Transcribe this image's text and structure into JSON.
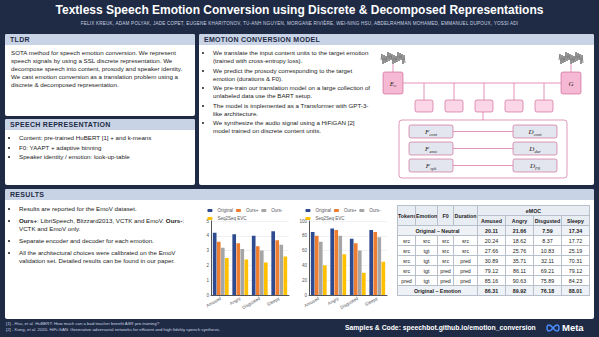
{
  "header": {
    "title": "Textless Speech Emotion Conversion using Discrete & Decomposed Representations",
    "authors": "FELIX KREUK, ADAM POLYAK, JADE COPET, EUGENE KHARITONOV, TU-ANH NGUYEN, MORGANE RIVIÈRE, WEI-NING HSU, ABDELRAHMAN MOHAMED, EMMANUEL DUPOUX, YOSSI ADI"
  },
  "tldr": {
    "heading": "TLDR",
    "text": "SOTA method for speech emotion conversion. We represent speech signals by using a SSL discrete representation. We decompose speech into content, prosody and speaker identity. We cast emotion conversion as a translation problem using a discrete & decomposed representation."
  },
  "speech_representation": {
    "heading": "SPEECH REPRESENTATION",
    "items": [
      "Content: pre-trained HuBERT [1] + and k-means",
      "F0: YAAPT + adaptive binning",
      "Speaker identity / emotion: look-up-table"
    ]
  },
  "model": {
    "heading": "EMOTION CONVERSION MODEL",
    "items": [
      "We translate the input content units to the target emotion (trained with cross-entropy loss).",
      "We predict the prosody corresponding to the target emotion (durations & F0).",
      "We pre-train our translation model on a large collection of unlabeled data use the BART setup.",
      "The model is implemented as a Transformer with GPT-3-like architecture.",
      "We synthesize the audio signal using a HiFiGAN [2] model trained on discrete content units."
    ],
    "diagram": {
      "top": [
        {
          "label": "E",
          "sub": "c"
        },
        {
          "label": "G",
          "sub": ""
        }
      ],
      "left": [
        {
          "label": "F",
          "sub": "cont"
        },
        {
          "label": "F",
          "sub": "emo"
        },
        {
          "label": "F",
          "sub": "spk"
        }
      ],
      "right": [
        {
          "label": "D",
          "sub": "cont"
        },
        {
          "label": "D",
          "sub": "dur"
        },
        {
          "label": "D",
          "sub": "F0"
        }
      ]
    }
  },
  "results": {
    "heading": "RESULTS",
    "items": [
      [
        {
          "text": "Results are reported for the EmoV dataset.",
          "bold": false
        }
      ],
      [
        {
          "text": "Ours+",
          "bold": true
        },
        {
          "text": ": LibriSpeech, Blizzard2013, VCTK and EmoV. ",
          "bold": false
        },
        {
          "text": "Ours-",
          "bold": true
        },
        {
          "text": ": VCTK and EmoV only.",
          "bold": false
        }
      ],
      [
        {
          "text": "Separate encoder and decoder for each emotion.",
          "bold": false
        }
      ],
      [
        {
          "text": "All the architectural choices were calibrated on the EmoV validation set. Detailed results can be found in our paper.",
          "bold": false
        }
      ]
    ],
    "table": {
      "columns": [
        "Tokens",
        "Emotion",
        "F0",
        "Duration"
      ],
      "group": "eMOC",
      "subcolumns": [
        "Amused",
        "Angry",
        "Disgusted",
        "Sleepy"
      ],
      "rows": [
        {
          "label": "Original – Neutral",
          "values": [
            20.11,
            21.66,
            7.59,
            17.34
          ]
        },
        {
          "cells": [
            "src",
            "src",
            "src",
            "src"
          ],
          "values": [
            20.24,
            18.62,
            8.37,
            17.72
          ]
        },
        {
          "cells": [
            "src",
            "tgt",
            "src",
            "src"
          ],
          "values": [
            27.66,
            25.76,
            10.83,
            25.19
          ]
        },
        {
          "cells": [
            "src",
            "tgt",
            "src",
            "pred"
          ],
          "values": [
            30.89,
            35.71,
            32.11,
            70.31
          ]
        },
        {
          "cells": [
            "src",
            "tgt",
            "pred",
            "pred"
          ],
          "values": [
            79.12,
            86.11,
            69.21,
            79.12
          ]
        },
        {
          "cells": [
            "pred",
            "tgt",
            "pred",
            "pred"
          ],
          "values": [
            85.16,
            90.63,
            75.89,
            84.23
          ]
        },
        {
          "label": "Original – Emotion",
          "values": [
            86.31,
            89.92,
            76.18,
            88.01
          ]
        }
      ]
    }
  },
  "chart_data": [
    {
      "type": "bar",
      "categories": [
        "Amused",
        "Angry",
        "Disgusted",
        "Sleepy"
      ],
      "series": [
        {
          "name": "Original",
          "color": "#2f4b8f",
          "values": [
            4.2,
            4.1,
            4.0,
            4.3
          ]
        },
        {
          "name": "Ours+",
          "color": "#ed7d31",
          "values": [
            3.6,
            3.5,
            3.3,
            3.7
          ]
        },
        {
          "name": "Ours-",
          "color": "#a5a5a5",
          "values": [
            3.2,
            3.1,
            3.0,
            3.4
          ]
        },
        {
          "name": "Seq2Seq EVC",
          "color": "#ffc000",
          "values": [
            2.5,
            2.4,
            2.2,
            2.6
          ]
        }
      ],
      "ylim": [
        0,
        5
      ],
      "yticks": [
        0,
        1,
        2,
        3,
        4,
        5
      ],
      "grid": true,
      "legend": "top"
    },
    {
      "type": "bar",
      "categories": [
        "Amused",
        "Angry",
        "Disgusted",
        "Sleepy"
      ],
      "series": [
        {
          "name": "Original",
          "color": "#2f4b8f",
          "values": [
            85,
            90,
            76,
            88
          ]
        },
        {
          "name": "Ours+",
          "color": "#ed7d31",
          "values": [
            80,
            88,
            70,
            85
          ]
        },
        {
          "name": "Ours-",
          "color": "#a5a5a5",
          "values": [
            72,
            80,
            60,
            78
          ]
        },
        {
          "name": "Seq2Seq EVC",
          "color": "#ffc000",
          "values": [
            40,
            55,
            30,
            45
          ]
        }
      ],
      "ylim": [
        0,
        100
      ],
      "yticks": [
        0,
        20,
        40,
        60,
        80,
        100
      ],
      "grid": true,
      "legend": "top"
    }
  ],
  "footer": {
    "references": [
      "[1] - Hsu, et al. HuBERT: How much can a bad teacher benefit ASR pre-training?",
      "[2] - Kong, et al. 2020. HiFi-GAN: Generative adversarial networks for efficient and high fidelity speech synthesis."
    ],
    "link": "Samples & Code: speechbot.github.io/emotion_conversion",
    "logo": "Meta"
  }
}
